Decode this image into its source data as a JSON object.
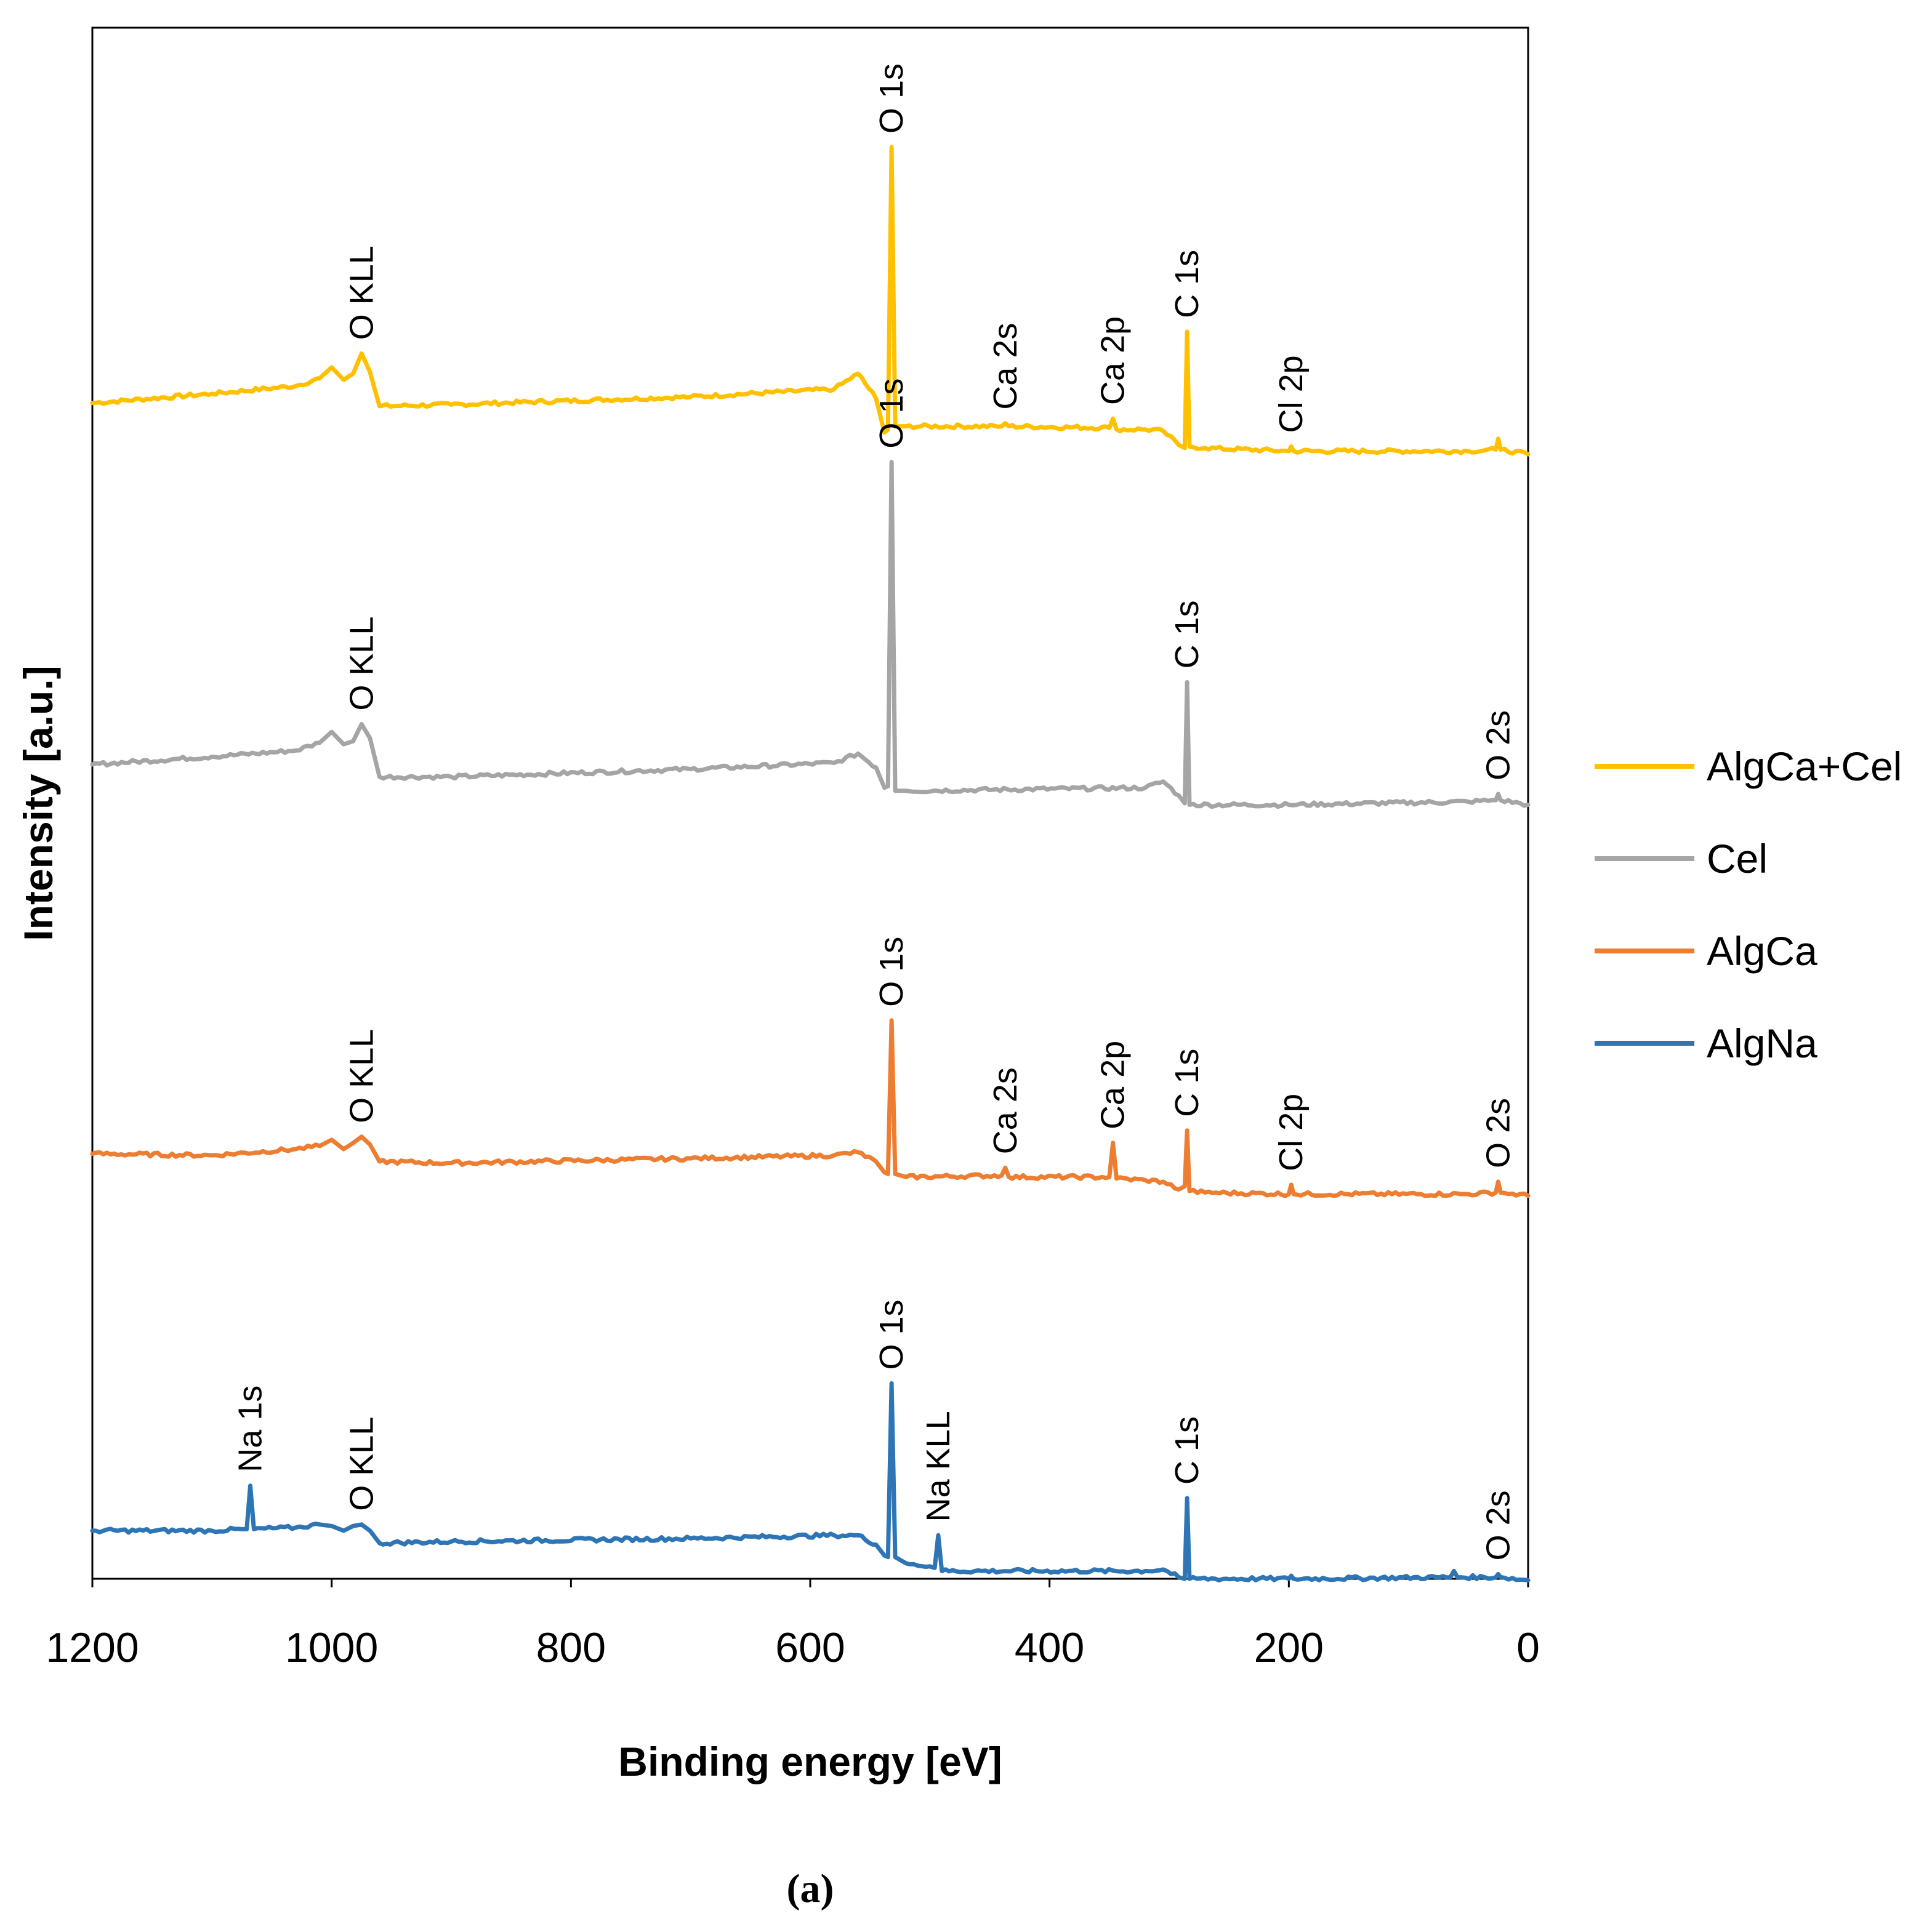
{
  "chart_data": {
    "type": "line",
    "title": "",
    "xlabel": "Binding energy [eV]",
    "ylabel": "Intensity [a.u.]",
    "x_reversed": true,
    "xlim": [
      1200,
      0
    ],
    "xticks": [
      1200,
      1000,
      800,
      600,
      400,
      200,
      0
    ],
    "ylim": [
      0,
      100
    ],
    "grid": false,
    "legend_position": "right",
    "caption": "(a)",
    "series": [
      {
        "name": "AlgCa+Cel",
        "color": "#FFC000",
        "offset": 75.5,
        "points": [
          [
            1200,
            0.3
          ],
          [
            1100,
            0.9
          ],
          [
            1030,
            1.4
          ],
          [
            1010,
            1.9
          ],
          [
            1000,
            2.6
          ],
          [
            990,
            1.8
          ],
          [
            982,
            2.2
          ],
          [
            975,
            3.5
          ],
          [
            968,
            2.3
          ],
          [
            960,
            0.1
          ],
          [
            900,
            0.2
          ],
          [
            700,
            0.7
          ],
          [
            580,
            1.2
          ],
          [
            560,
            2.2
          ],
          [
            545,
            0.6
          ],
          [
            538,
            -1.6
          ],
          [
            535,
            -1.4
          ],
          [
            532,
            16.8
          ],
          [
            529,
            -1.2
          ],
          [
            520,
            -1.2
          ],
          [
            440,
            -1.2
          ],
          [
            437,
            -1.0
          ],
          [
            434,
            -1.2
          ],
          [
            350,
            -1.3
          ],
          [
            347,
            -0.7
          ],
          [
            344,
            -1.4
          ],
          [
            320,
            -1.4
          ],
          [
            305,
            -1.5
          ],
          [
            292,
            -2.4
          ],
          [
            287,
            -2.6
          ],
          [
            285,
            4.9
          ],
          [
            283,
            -2.5
          ],
          [
            270,
            -2.6
          ],
          [
            200,
            -2.8
          ],
          [
            198,
            -2.5
          ],
          [
            196,
            -2.8
          ],
          [
            50,
            -2.8
          ],
          [
            27,
            -2.7
          ],
          [
            25,
            -2.0
          ],
          [
            23,
            -2.7
          ],
          [
            0,
            -3.0
          ]
        ],
        "labels": [
          {
            "text": "O KLL",
            "x": 975
          },
          {
            "text": "O 1s",
            "x": 532
          },
          {
            "text": "Ca 2s",
            "x": 437
          },
          {
            "text": "Ca 2p",
            "x": 347
          },
          {
            "text": "C 1s",
            "x": 285
          },
          {
            "text": "Cl 2p",
            "x": 198
          }
        ]
      },
      {
        "name": "Cel",
        "color": "#A5A5A5",
        "offset": 52.5,
        "points": [
          [
            1200,
            0.0
          ],
          [
            1100,
            0.5
          ],
          [
            1030,
            0.9
          ],
          [
            1010,
            1.4
          ],
          [
            1000,
            2.1
          ],
          [
            990,
            1.3
          ],
          [
            982,
            1.5
          ],
          [
            975,
            2.6
          ],
          [
            968,
            1.7
          ],
          [
            960,
            -0.8
          ],
          [
            900,
            -0.8
          ],
          [
            700,
            -0.3
          ],
          [
            580,
            0.1
          ],
          [
            560,
            0.7
          ],
          [
            545,
            -0.2
          ],
          [
            538,
            -1.5
          ],
          [
            535,
            -1.4
          ],
          [
            532,
            19.5
          ],
          [
            529,
            -1.7
          ],
          [
            520,
            -1.7
          ],
          [
            320,
            -1.5
          ],
          [
            305,
            -1.1
          ],
          [
            292,
            -2.0
          ],
          [
            287,
            -2.5
          ],
          [
            285,
            5.3
          ],
          [
            283,
            -2.6
          ],
          [
            200,
            -2.6
          ],
          [
            50,
            -2.4
          ],
          [
            27,
            -2.3
          ],
          [
            25,
            -1.9
          ],
          [
            23,
            -2.3
          ],
          [
            0,
            -2.6
          ]
        ],
        "labels": [
          {
            "text": "O KLL",
            "x": 975
          },
          {
            "text": "O 1s",
            "x": 532
          },
          {
            "text": "C 1s",
            "x": 285
          },
          {
            "text": "O 2s",
            "x": 25
          }
        ]
      },
      {
        "name": "AlgCa",
        "color": "#ED7D31",
        "offset": 27.5,
        "points": [
          [
            1200,
            -0.1
          ],
          [
            1100,
            -0.2
          ],
          [
            1030,
            0.2
          ],
          [
            1010,
            0.4
          ],
          [
            1000,
            0.8
          ],
          [
            990,
            0.2
          ],
          [
            982,
            0.6
          ],
          [
            975,
            1.0
          ],
          [
            968,
            0.5
          ],
          [
            960,
            -0.6
          ],
          [
            900,
            -0.7
          ],
          [
            700,
            -0.4
          ],
          [
            580,
            -0.2
          ],
          [
            560,
            0.0
          ],
          [
            545,
            -0.6
          ],
          [
            538,
            -1.3
          ],
          [
            535,
            -1.4
          ],
          [
            532,
            8.5
          ],
          [
            529,
            -1.4
          ],
          [
            520,
            -1.6
          ],
          [
            440,
            -1.5
          ],
          [
            437,
            -1.0
          ],
          [
            434,
            -1.6
          ],
          [
            350,
            -1.6
          ],
          [
            347,
            0.6
          ],
          [
            344,
            -1.7
          ],
          [
            320,
            -1.8
          ],
          [
            305,
            -1.9
          ],
          [
            292,
            -2.4
          ],
          [
            287,
            -2.2
          ],
          [
            285,
            1.4
          ],
          [
            283,
            -2.5
          ],
          [
            270,
            -2.6
          ],
          [
            200,
            -2.7
          ],
          [
            198,
            -2.1
          ],
          [
            196,
            -2.7
          ],
          [
            50,
            -2.7
          ],
          [
            27,
            -2.6
          ],
          [
            25,
            -1.9
          ],
          [
            23,
            -2.6
          ],
          [
            0,
            -2.8
          ]
        ],
        "labels": [
          {
            "text": "O KLL",
            "x": 975
          },
          {
            "text": "O 1s",
            "x": 532
          },
          {
            "text": "Ca 2s",
            "x": 437
          },
          {
            "text": "Ca 2p",
            "x": 347
          },
          {
            "text": "C 1s",
            "x": 285
          },
          {
            "text": "Cl 2p",
            "x": 198
          },
          {
            "text": "O 2s",
            "x": 25
          }
        ]
      },
      {
        "name": "AlgNa",
        "color": "#2E75B6",
        "offset": 3.0,
        "points": [
          [
            1200,
            0.1
          ],
          [
            1100,
            0.1
          ],
          [
            1075,
            0.2
          ],
          [
            1071,
            0.2
          ],
          [
            1068,
            3.0
          ],
          [
            1065,
            0.2
          ],
          [
            1030,
            0.3
          ],
          [
            1010,
            0.5
          ],
          [
            1000,
            0.4
          ],
          [
            990,
            0.1
          ],
          [
            982,
            0.4
          ],
          [
            975,
            0.5
          ],
          [
            968,
            0.1
          ],
          [
            960,
            -0.7
          ],
          [
            900,
            -0.6
          ],
          [
            700,
            -0.4
          ],
          [
            580,
            -0.2
          ],
          [
            560,
            -0.2
          ],
          [
            545,
            -0.8
          ],
          [
            538,
            -1.5
          ],
          [
            535,
            -1.6
          ],
          [
            532,
            9.6
          ],
          [
            529,
            -1.6
          ],
          [
            520,
            -2.0
          ],
          [
            500,
            -2.2
          ],
          [
            496,
            -2.3
          ],
          [
            493,
            -0.2
          ],
          [
            490,
            -2.5
          ],
          [
            320,
            -2.5
          ],
          [
            305,
            -2.4
          ],
          [
            292,
            -2.9
          ],
          [
            287,
            -3.0
          ],
          [
            285,
            2.2
          ],
          [
            283,
            -3.0
          ],
          [
            200,
            -3.0
          ],
          [
            198,
            -2.8
          ],
          [
            196,
            -3.0
          ],
          [
            65,
            -2.9
          ],
          [
            62,
            -2.5
          ],
          [
            59,
            -2.9
          ],
          [
            27,
            -2.9
          ],
          [
            25,
            -2.7
          ],
          [
            23,
            -2.9
          ],
          [
            0,
            -3.1
          ]
        ],
        "labels": [
          {
            "text": "Na 1s",
            "x": 1068
          },
          {
            "text": "O KLL",
            "x": 975
          },
          {
            "text": "O 1s",
            "x": 532
          },
          {
            "text": "Na KLL",
            "x": 493
          },
          {
            "text": "C 1s",
            "x": 285
          },
          {
            "text": "O 2s",
            "x": 25
          }
        ]
      }
    ]
  }
}
